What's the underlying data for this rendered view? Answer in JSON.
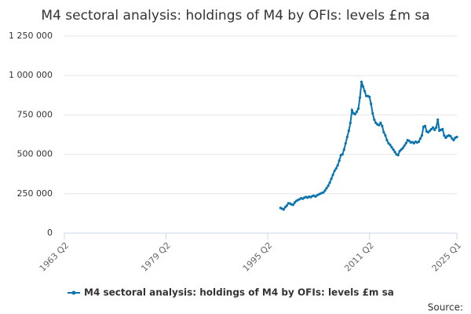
{
  "chart_data": {
    "type": "line",
    "title": "M4 sectoral analysis: holdings of M4 by OFIs: levels £m sa",
    "source_label": "Source:",
    "xlim": [
      1963.25,
      2025.0
    ],
    "xticks": [
      {
        "value": 1963.25,
        "label": "1963 Q2"
      },
      {
        "value": 1979.25,
        "label": "1979 Q2"
      },
      {
        "value": 1995.25,
        "label": "1995 Q2"
      },
      {
        "value": 2011.25,
        "label": "2011 Q2"
      },
      {
        "value": 2025.0,
        "label": "2025 Q1"
      }
    ],
    "ylim": [
      0,
      1250000
    ],
    "yticks": [
      0,
      {
        "value": 250000,
        "label": "250 000"
      },
      {
        "value": 500000,
        "label": "500 000"
      },
      {
        "value": 750000,
        "label": "750 000"
      },
      {
        "value": 1000000,
        "label": "1 000 000"
      },
      {
        "value": 1250000,
        "label": "1 250 000"
      }
    ],
    "grid": true,
    "legend": "bottom",
    "x": [
      1997.25,
      1997.5,
      1997.75,
      1998,
      1998.25,
      1998.5,
      1998.75,
      1999,
      1999.25,
      1999.5,
      1999.75,
      2000,
      2000.25,
      2000.5,
      2000.75,
      2001,
      2001.25,
      2001.5,
      2001.75,
      2002,
      2002.25,
      2002.5,
      2002.75,
      2003,
      2003.25,
      2003.5,
      2003.75,
      2004,
      2004.25,
      2004.5,
      2004.75,
      2005,
      2005.25,
      2005.5,
      2005.75,
      2006,
      2006.25,
      2006.5,
      2006.75,
      2007,
      2007.25,
      2007.5,
      2007.75,
      2008,
      2008.25,
      2008.5,
      2008.75,
      2009,
      2009.25,
      2009.5,
      2009.75,
      2010,
      2010.25,
      2010.5,
      2010.75,
      2011,
      2011.25,
      2011.5,
      2011.75,
      2012,
      2012.25,
      2012.5,
      2012.75,
      2013,
      2013.25,
      2013.5,
      2013.75,
      2014,
      2014.25,
      2014.5,
      2014.75,
      2015,
      2015.25,
      2015.5,
      2015.75,
      2016,
      2016.25,
      2016.5,
      2016.75,
      2017,
      2017.25,
      2017.5,
      2017.75,
      2018,
      2018.25,
      2018.5,
      2018.75,
      2019,
      2019.25,
      2019.5,
      2019.75,
      2020,
      2020.25,
      2020.5,
      2020.75,
      2021,
      2021.25,
      2021.5,
      2021.75,
      2022,
      2022.25,
      2022.5,
      2022.75,
      2023,
      2023.25,
      2023.5,
      2023.75,
      2024,
      2024.25,
      2024.5,
      2024.75,
      2025
    ],
    "series": [
      {
        "name": "M4 sectoral analysis: holdings of M4 by OFIs: levels £m sa",
        "color": "#0a74b0",
        "values": [
          160000,
          155000,
          150000,
          165000,
          175000,
          190000,
          188000,
          182000,
          180000,
          195000,
          205000,
          210000,
          215000,
          222000,
          218000,
          225000,
          230000,
          225000,
          232000,
          228000,
          235000,
          238000,
          232000,
          240000,
          245000,
          250000,
          255000,
          258000,
          270000,
          285000,
          300000,
          320000,
          345000,
          370000,
          395000,
          410000,
          430000,
          460000,
          495000,
          500000,
          530000,
          570000,
          610000,
          650000,
          700000,
          780000,
          760000,
          755000,
          770000,
          790000,
          860000,
          960000,
          930000,
          900000,
          870000,
          870000,
          865000,
          820000,
          760000,
          720000,
          700000,
          690000,
          685000,
          700000,
          680000,
          640000,
          620000,
          590000,
          570000,
          560000,
          545000,
          530000,
          515000,
          500000,
          495000,
          520000,
          530000,
          540000,
          555000,
          570000,
          590000,
          585000,
          575000,
          578000,
          570000,
          580000,
          575000,
          580000,
          600000,
          620000,
          675000,
          680000,
          645000,
          640000,
          650000,
          660000,
          670000,
          655000,
          670000,
          720000,
          650000,
          655000,
          660000,
          620000,
          605000,
          615000,
          620000,
          615000,
          600000,
          590000,
          605000,
          610000
        ]
      }
    ]
  }
}
